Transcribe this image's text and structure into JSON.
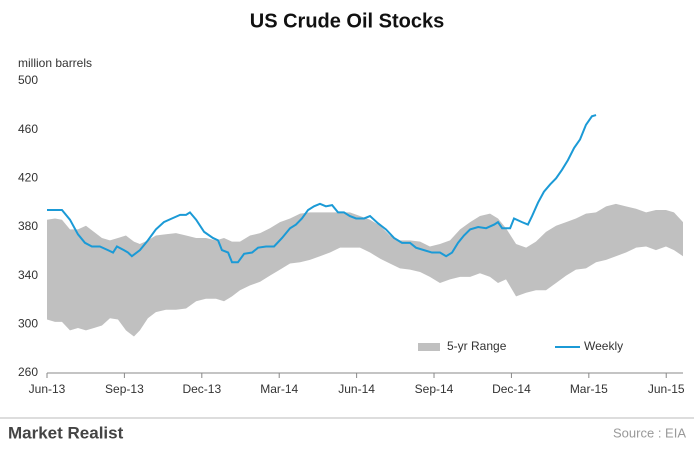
{
  "chart_data": {
    "type": "line",
    "title": "US Crude Oil Stocks",
    "y_label": "million barrels",
    "xlim": [
      0,
      24.65
    ],
    "ylim": [
      260,
      500
    ],
    "xticks": [
      {
        "value": 0,
        "label": "Jun-13"
      },
      {
        "value": 3,
        "label": "Sep-13"
      },
      {
        "value": 6,
        "label": "Dec-13"
      },
      {
        "value": 9,
        "label": "Mar-14"
      },
      {
        "value": 12,
        "label": "Jun-14"
      },
      {
        "value": 15,
        "label": "Sep-14"
      },
      {
        "value": 18,
        "label": "Dec-14"
      },
      {
        "value": 21,
        "label": "Mar-15"
      },
      {
        "value": 24,
        "label": "Jun-15"
      }
    ],
    "yticks": [
      260,
      300,
      340,
      380,
      420,
      460,
      500
    ],
    "legend": "bottom-right",
    "series": [
      {
        "name": "5-yr Range",
        "type": "range",
        "color": "#c0c0c0",
        "x": [
          0,
          0.31,
          0.58,
          0.89,
          1.2,
          1.51,
          1.82,
          2.13,
          2.44,
          2.75,
          3.06,
          3.37,
          3.6,
          3.91,
          4.22,
          4.61,
          5.0,
          5.39,
          5.78,
          6.16,
          6.55,
          6.86,
          7.17,
          7.48,
          7.87,
          8.26,
          8.64,
          9.03,
          9.42,
          9.81,
          10.19,
          10.58,
          10.97,
          11.36,
          11.74,
          12.13,
          12.52,
          12.91,
          13.29,
          13.68,
          14.07,
          14.46,
          14.84,
          15.23,
          15.62,
          16.01,
          16.4,
          16.78,
          17.17,
          17.48,
          17.79,
          18.18,
          18.57,
          18.95,
          19.34,
          19.73,
          20.12,
          20.5,
          20.89,
          21.28,
          21.67,
          22.05,
          22.44,
          22.83,
          23.22,
          23.6,
          23.99,
          24.3,
          24.65
        ],
        "high": [
          386,
          387,
          386,
          378,
          378,
          381,
          376,
          371,
          369,
          371,
          373,
          368,
          366,
          369,
          373,
          374,
          375,
          373,
          371,
          371,
          369,
          371,
          368,
          368,
          373,
          375,
          379,
          384,
          387,
          391,
          392,
          392,
          392,
          392,
          392,
          389,
          386,
          381,
          373,
          369,
          369,
          368,
          364,
          366,
          369,
          378,
          384,
          389,
          391,
          387,
          379,
          366,
          363,
          368,
          376,
          381,
          384,
          387,
          391,
          392,
          397,
          399,
          397,
          395,
          392,
          394,
          394,
          392,
          384
        ],
        "low": [
          304,
          302,
          302,
          295,
          297,
          295,
          297,
          299,
          305,
          304,
          295,
          290,
          295,
          305,
          310,
          312,
          312,
          313,
          319,
          321,
          321,
          319,
          323,
          328,
          332,
          335,
          340,
          345,
          350,
          351,
          353,
          356,
          359,
          363,
          363,
          363,
          359,
          354,
          350,
          346,
          345,
          343,
          339,
          334,
          337,
          339,
          339,
          342,
          339,
          334,
          337,
          323,
          326,
          328,
          328,
          334,
          340,
          345,
          346,
          351,
          353,
          356,
          359,
          363,
          364,
          361,
          364,
          361,
          356
        ]
      },
      {
        "name": "Weekly",
        "type": "line",
        "color": "#1b9ad6",
        "x": [
          0,
          0.58,
          0.89,
          1.2,
          1.47,
          1.74,
          2.05,
          2.36,
          2.56,
          2.71,
          2.98,
          3.14,
          3.29,
          3.6,
          3.91,
          4.22,
          4.53,
          4.84,
          5.16,
          5.39,
          5.54,
          5.78,
          6.09,
          6.43,
          6.63,
          6.78,
          7.02,
          7.17,
          7.4,
          7.64,
          7.95,
          8.18,
          8.49,
          8.8,
          9.11,
          9.42,
          9.65,
          9.88,
          10.12,
          10.35,
          10.58,
          10.81,
          11.05,
          11.28,
          11.51,
          11.74,
          11.98,
          12.29,
          12.52,
          12.83,
          13.14,
          13.45,
          13.76,
          14.07,
          14.3,
          14.61,
          14.92,
          15.23,
          15.47,
          15.7,
          15.93,
          16.16,
          16.4,
          16.71,
          17.02,
          17.33,
          17.48,
          17.64,
          17.95,
          18.1,
          18.41,
          18.64,
          18.8,
          19.03,
          19.26,
          19.5,
          19.73,
          19.96,
          20.19,
          20.43,
          20.66,
          20.89,
          21.12,
          21.28
        ],
        "values": [
          394,
          394,
          386,
          374,
          367,
          364,
          364,
          361,
          359,
          364,
          361,
          359,
          356,
          361,
          369,
          378,
          384,
          387,
          390,
          390,
          392,
          386,
          376,
          371,
          369,
          361,
          359,
          351,
          351,
          358,
          359,
          363,
          364,
          364,
          371,
          379,
          382,
          387,
          394,
          397,
          399,
          397,
          398,
          392,
          392,
          389,
          387,
          387,
          389,
          383,
          378,
          371,
          367,
          367,
          363,
          361,
          359,
          359,
          356,
          359,
          367,
          373,
          378,
          380,
          379,
          382,
          384,
          379,
          379,
          387,
          384,
          382,
          389,
          400,
          409,
          415,
          420,
          427,
          435,
          445,
          452,
          464,
          471,
          472
        ]
      }
    ]
  },
  "footer": {
    "brand": "Market Realist",
    "source": "Source : EIA"
  }
}
